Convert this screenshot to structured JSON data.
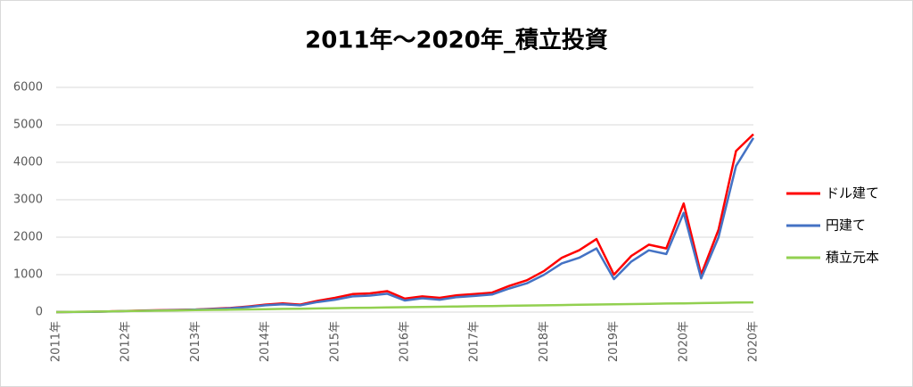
{
  "chart_data": {
    "type": "line",
    "title": "2011年～2020年_積立投資",
    "categories": [
      "2011年",
      null,
      null,
      null,
      "2012年",
      null,
      null,
      null,
      "2013年",
      null,
      null,
      null,
      "2014年",
      null,
      null,
      null,
      "2015年",
      null,
      null,
      null,
      "2016年",
      null,
      null,
      null,
      "2017年",
      null,
      null,
      null,
      "2018年",
      null,
      null,
      null,
      "2019年",
      null,
      null,
      null,
      "2020年",
      null,
      null,
      null,
      "2020年"
    ],
    "series": [
      {
        "name": "ドル建て",
        "color": "#ff0000",
        "values": [
          0,
          5,
          10,
          20,
          30,
          40,
          50,
          60,
          70,
          90,
          110,
          150,
          200,
          230,
          200,
          300,
          380,
          480,
          500,
          560,
          360,
          420,
          380,
          450,
          480,
          520,
          700,
          850,
          1100,
          1450,
          1650,
          1950,
          1000,
          1500,
          1800,
          1700,
          2900,
          1000,
          2200,
          4300,
          4750
        ]
      },
      {
        "name": "円建て",
        "color": "#4472c4",
        "values": [
          0,
          3,
          8,
          15,
          25,
          35,
          45,
          55,
          65,
          80,
          100,
          135,
          180,
          210,
          180,
          270,
          330,
          420,
          440,
          490,
          310,
          370,
          330,
          400,
          430,
          470,
          630,
          770,
          1000,
          1300,
          1450,
          1700,
          880,
          1350,
          1650,
          1550,
          2650,
          900,
          2000,
          3900,
          4650
        ]
      },
      {
        "name": "積立元本",
        "color": "#92d050",
        "values": [
          0,
          7,
          13,
          20,
          26,
          33,
          39,
          46,
          52,
          59,
          65,
          72,
          78,
          85,
          91,
          98,
          104,
          111,
          117,
          124,
          130,
          137,
          143,
          150,
          156,
          163,
          169,
          176,
          182,
          189,
          195,
          202,
          208,
          215,
          221,
          228,
          234,
          241,
          247,
          254,
          260
        ]
      }
    ],
    "ylim": [
      0,
      6000
    ],
    "yticks": [
      0,
      1000,
      2000,
      3000,
      4000,
      5000,
      6000
    ],
    "grid": true,
    "legend": "right"
  }
}
